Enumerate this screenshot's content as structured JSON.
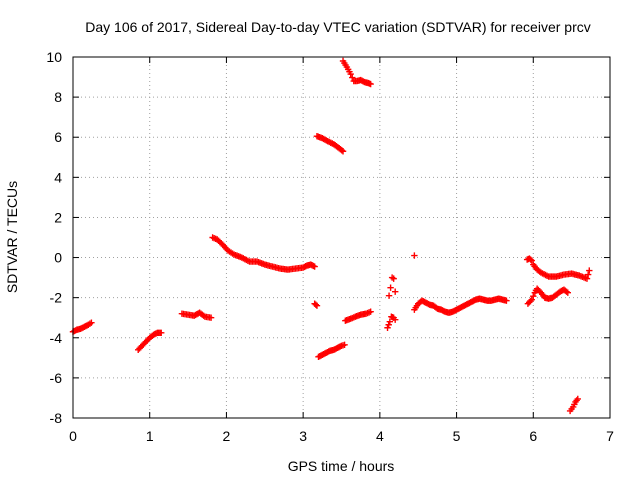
{
  "chart_data": {
    "type": "scatter",
    "title": "Day 106 of 2017, Sidereal Day-to-day VTEC variation (SDTVAR) for receiver prcv",
    "xlabel": "GPS time / hours",
    "ylabel": "SDTVAR / TECUs",
    "xlim": [
      0,
      7
    ],
    "ylim": [
      -8,
      10
    ],
    "xticks": [
      "0",
      "1",
      "2",
      "3",
      "4",
      "5",
      "6",
      "7"
    ],
    "yticks": [
      "-8",
      "-6",
      "-4",
      "-2",
      "0",
      "2",
      "4",
      "6",
      "8",
      "10"
    ],
    "grid": true,
    "marker": "plus",
    "color": "#ff0000",
    "segments": [
      {
        "x": [
          0.0,
          0.05,
          0.1,
          0.15,
          0.2,
          0.24
        ],
        "y": [
          -3.7,
          -3.6,
          -3.55,
          -3.45,
          -3.35,
          -3.25
        ]
      },
      {
        "x": [
          0.85,
          0.9,
          0.95,
          1.0,
          1.05,
          1.1,
          1.15
        ],
        "y": [
          -4.6,
          -4.4,
          -4.2,
          -4.0,
          -3.85,
          -3.75,
          -3.75
        ]
      },
      {
        "x": [
          1.42,
          1.5,
          1.58,
          1.65,
          1.72,
          1.8
        ],
        "y": [
          -2.8,
          -2.85,
          -2.9,
          -2.75,
          -2.95,
          -3.0
        ]
      },
      {
        "x": [
          1.82,
          1.88,
          1.95,
          2.02,
          2.1,
          2.2,
          2.3,
          2.4,
          2.5,
          2.6,
          2.7,
          2.8,
          2.9,
          3.0,
          3.05,
          3.1,
          3.15
        ],
        "y": [
          1.0,
          0.9,
          0.65,
          0.35,
          0.15,
          0.0,
          -0.2,
          -0.2,
          -0.35,
          -0.45,
          -0.55,
          -0.6,
          -0.55,
          -0.5,
          -0.4,
          -0.35,
          -0.45
        ]
      },
      {
        "x": [
          3.15,
          3.18
        ],
        "y": [
          -2.3,
          -2.4
        ]
      },
      {
        "x": [
          3.18,
          3.25,
          3.32,
          3.4,
          3.47,
          3.52
        ],
        "y": [
          6.05,
          5.95,
          5.8,
          5.65,
          5.45,
          5.3
        ]
      },
      {
        "x": [
          3.2,
          3.25,
          3.3,
          3.35,
          3.4,
          3.45,
          3.5,
          3.54
        ],
        "y": [
          -4.95,
          -4.85,
          -4.75,
          -4.65,
          -4.6,
          -4.5,
          -4.4,
          -4.35
        ]
      },
      {
        "x": [
          3.52,
          3.57,
          3.62,
          3.66,
          3.7,
          3.75,
          3.8,
          3.85,
          3.88
        ],
        "y": [
          9.8,
          9.5,
          9.15,
          8.8,
          8.8,
          8.85,
          8.75,
          8.7,
          8.65
        ]
      },
      {
        "x": [
          3.55,
          3.62,
          3.68,
          3.75,
          3.82,
          3.88
        ],
        "y": [
          -3.15,
          -3.05,
          -2.95,
          -2.85,
          -2.8,
          -2.7
        ]
      },
      {
        "x": [
          4.1,
          4.13,
          4.15,
          4.18,
          4.2
        ],
        "y": [
          -3.5,
          -3.2,
          -2.95,
          -3.0,
          -3.1
        ]
      },
      {
        "x": [
          4.12,
          4.14,
          4.16,
          4.18,
          4.2
        ],
        "y": [
          -1.9,
          -1.5,
          -1.0,
          -1.05,
          -1.7
        ]
      },
      {
        "x": [
          4.45
        ],
        "y": [
          0.1
        ]
      },
      {
        "x": [
          4.45,
          4.5,
          4.55,
          4.6,
          4.65,
          4.7,
          4.75,
          4.8,
          4.85,
          4.9,
          4.95,
          5.0,
          5.05,
          5.1,
          5.15,
          5.2,
          5.25,
          5.3,
          5.35,
          5.4,
          5.45,
          5.5,
          5.55,
          5.6,
          5.65
        ],
        "y": [
          -2.6,
          -2.3,
          -2.15,
          -2.25,
          -2.35,
          -2.4,
          -2.55,
          -2.6,
          -2.7,
          -2.75,
          -2.7,
          -2.6,
          -2.5,
          -2.4,
          -2.3,
          -2.2,
          -2.1,
          -2.05,
          -2.1,
          -2.15,
          -2.15,
          -2.1,
          -2.05,
          -2.1,
          -2.15
        ]
      },
      {
        "x": [
          5.92,
          5.95,
          5.98,
          6.0,
          6.05,
          6.1,
          6.2,
          6.3,
          6.4,
          6.5,
          6.6,
          6.7,
          6.73
        ],
        "y": [
          -0.1,
          -0.05,
          -0.15,
          -0.35,
          -0.6,
          -0.75,
          -0.95,
          -0.95,
          -0.85,
          -0.8,
          -0.9,
          -1.05,
          -0.65
        ]
      },
      {
        "x": [
          5.93,
          5.98,
          6.02,
          6.05,
          6.1,
          6.15,
          6.2,
          6.25,
          6.3,
          6.35,
          6.4,
          6.45
        ],
        "y": [
          -2.3,
          -2.1,
          -1.75,
          -1.55,
          -1.75,
          -2.0,
          -2.05,
          -2.0,
          -1.85,
          -1.7,
          -1.6,
          -1.75
        ]
      },
      {
        "x": [
          6.48,
          6.52,
          6.55,
          6.58
        ],
        "y": [
          -7.65,
          -7.45,
          -7.2,
          -7.05
        ]
      }
    ]
  }
}
